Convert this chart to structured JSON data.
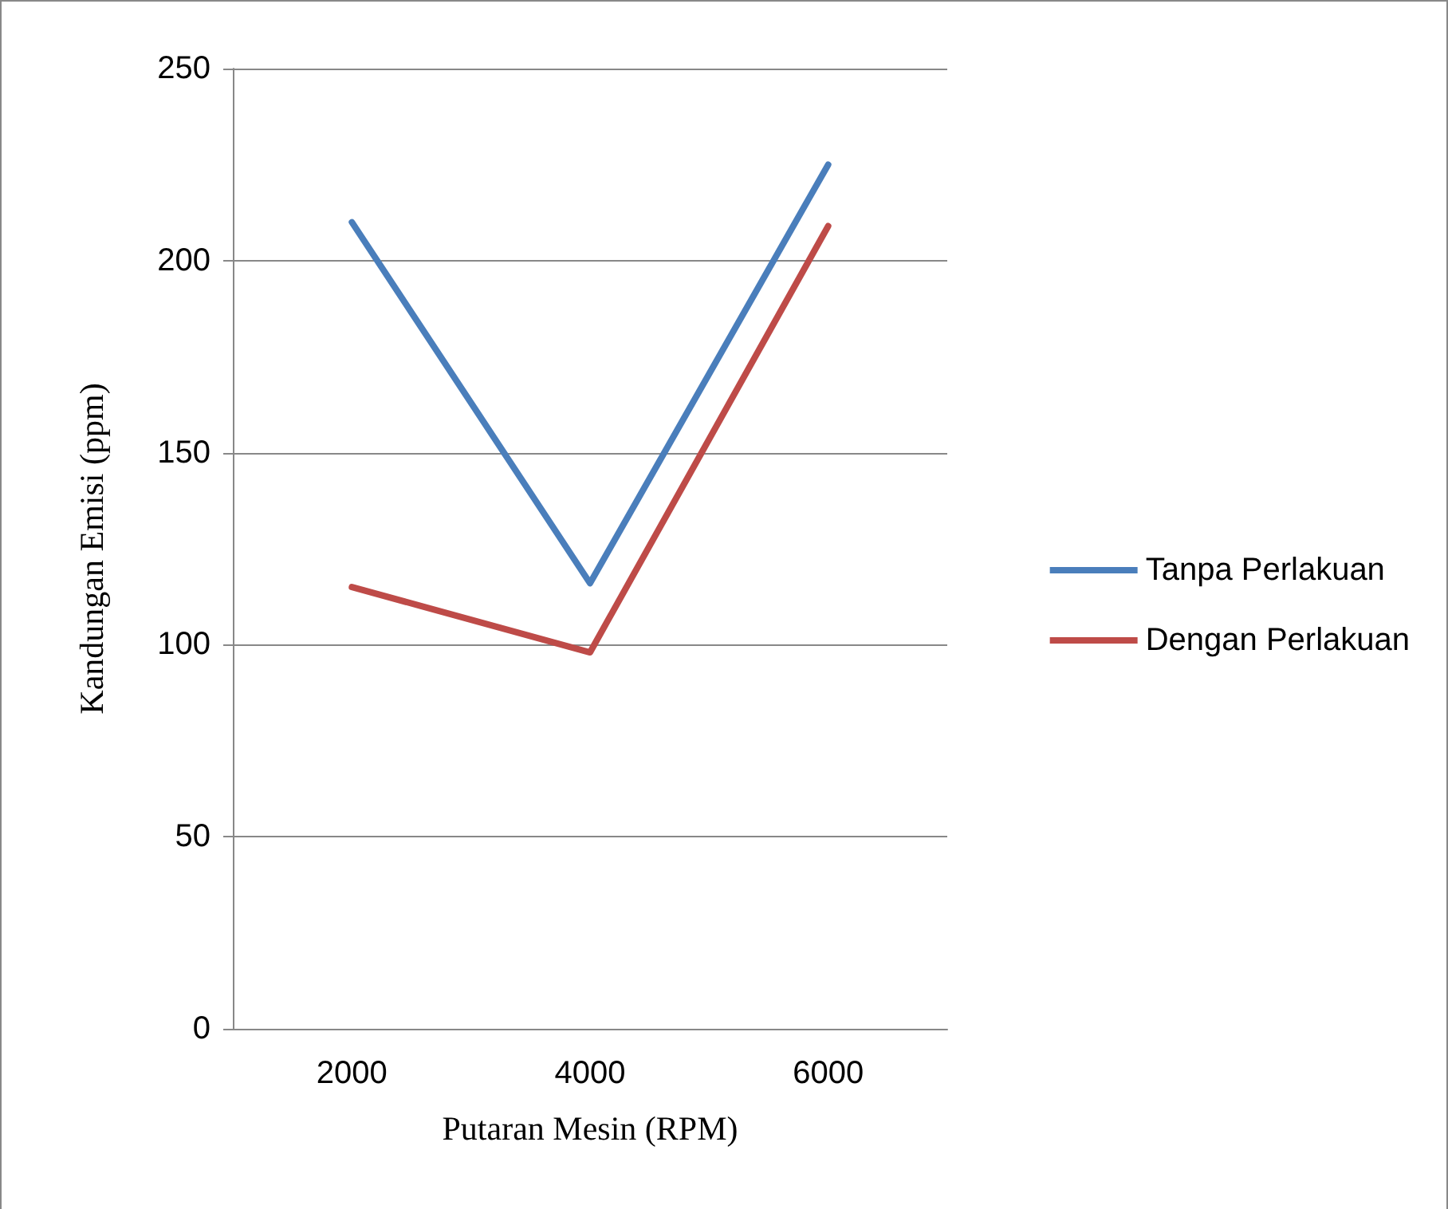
{
  "chart_data": {
    "type": "line",
    "xlabel": "Putaran Mesin (RPM)",
    "ylabel": "Kandungan Emisi (ppm)",
    "categories": [
      "2000",
      "4000",
      "6000"
    ],
    "series": [
      {
        "name": "Tanpa Perlakuan",
        "color": "#4a7ebb",
        "values": [
          210,
          116,
          225
        ]
      },
      {
        "name": "Dengan Perlakuan",
        "color": "#be4b48",
        "values": [
          115,
          98,
          209
        ]
      }
    ],
    "ylim": [
      0,
      250
    ],
    "yticks": [
      0,
      50,
      100,
      150,
      200,
      250
    ],
    "grid": "y",
    "legend": "right",
    "marker": "none",
    "line_style": "solid"
  }
}
